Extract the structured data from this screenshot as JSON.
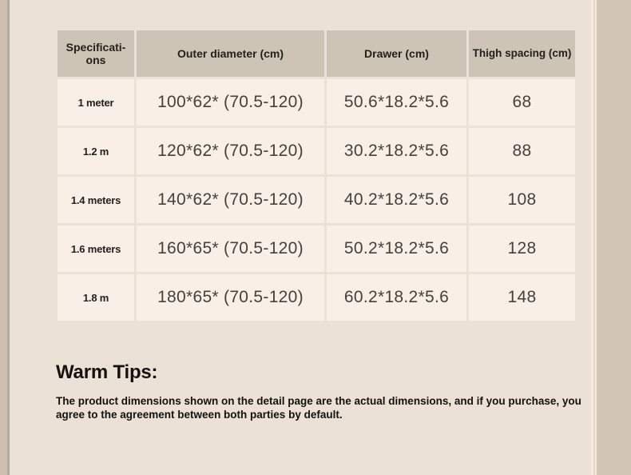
{
  "page": {
    "background_color": "#ebe1d7",
    "left_strip_color": "#cdc0af",
    "right_band_color": "#d3c5b4"
  },
  "table": {
    "header_bg": "#cdc4b6",
    "cell_bg": "#f9efe7",
    "columns": [
      "Specificati-ons",
      "Outer diameter (cm)",
      "Drawer (cm)",
      "Thigh spacing (cm)"
    ],
    "rows": [
      {
        "spec": "1 meter",
        "outer": "100*62* (70.5-120)",
        "drawer": "50.6*18.2*5.6",
        "thigh": "68"
      },
      {
        "spec": "1.2 m",
        "outer": "120*62* (70.5-120)",
        "drawer": "30.2*18.2*5.6",
        "thigh": "88"
      },
      {
        "spec": "1.4 meters",
        "outer": "140*62* (70.5-120)",
        "drawer": "40.2*18.2*5.6",
        "thigh": "108"
      },
      {
        "spec": "1.6 meters",
        "outer": "160*65* (70.5-120)",
        "drawer": "50.2*18.2*5.6",
        "thigh": "128"
      },
      {
        "spec": "1.8 m",
        "outer": "180*65* (70.5-120)",
        "drawer": "60.2*18.2*5.6",
        "thigh": "148"
      }
    ]
  },
  "tips": {
    "heading": "Warm Tips:",
    "body": "The product dimensions shown on the detail page are the actual dimensions, and if you purchase, you agree to the agreement between both parties by default."
  }
}
